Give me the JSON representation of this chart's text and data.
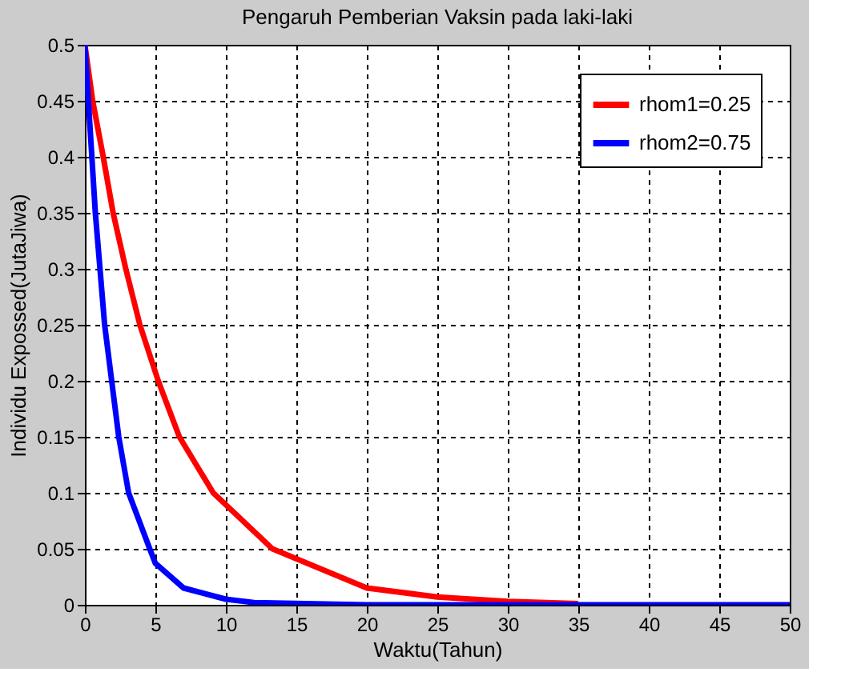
{
  "chart_data": {
    "type": "line",
    "title": "Pengaruh Pemberian Vaksin pada laki-laki",
    "xlabel": "Waktu(Tahun)",
    "ylabel": "Individu Expossed(JutaJiwa)",
    "series": [
      {
        "name": "rhom1=0.25",
        "color": "#ff0000",
        "x": [
          0,
          0.55,
          1.3,
          2.0,
          2.9,
          3.9,
          5.2,
          6.7,
          9.1,
          13.3,
          20,
          25,
          30,
          35
        ],
        "values": [
          0.5,
          0.45,
          0.4,
          0.35,
          0.3,
          0.25,
          0.2,
          0.15,
          0.1,
          0.05,
          0.015,
          0.007,
          0.003,
          0.001
        ]
      },
      {
        "name": "rhom2=0.75",
        "color": "#0000ff",
        "x": [
          0,
          0.74,
          1.4,
          2.4,
          3.1,
          4.6,
          5,
          7,
          10,
          12,
          20,
          50
        ],
        "values": [
          0.5,
          0.35,
          0.25,
          0.15,
          0.1,
          0.05,
          0.037,
          0.015,
          0.005,
          0.002,
          0,
          0
        ]
      }
    ],
    "xlim": [
      0,
      50
    ],
    "xticks": [
      0,
      5,
      10,
      15,
      20,
      25,
      30,
      35,
      40,
      45,
      50
    ],
    "ylim": [
      0,
      0.5
    ],
    "yticks": [
      0,
      0.05,
      0.1,
      0.15,
      0.2,
      0.25,
      0.3,
      0.35,
      0.4,
      0.45,
      0.5
    ],
    "grid": true,
    "legend": "top right",
    "marker": "none",
    "line_style": "solid"
  }
}
